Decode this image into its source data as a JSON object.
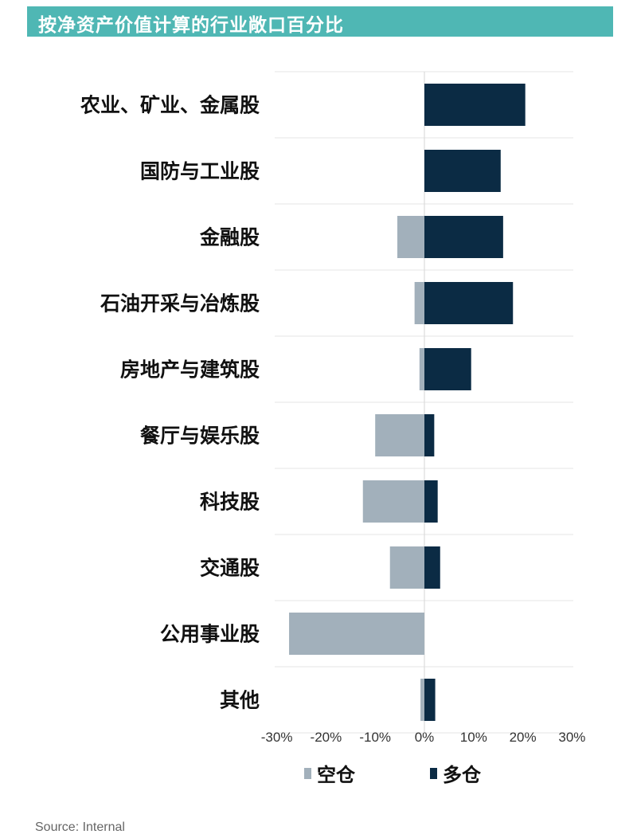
{
  "title": "按净资产价值计算的行业敞口百分比",
  "source": "Source: Internal",
  "colors": {
    "header_bg": "#4FB7B4",
    "short": "#A2B0BB",
    "long": "#0B2B44",
    "grid": "#E4E4E4"
  },
  "chart_data": {
    "type": "bar",
    "orientation": "horizontal",
    "title": "按净资产价值计算的行业敞口百分比",
    "categories": [
      "农业、矿业、金属股",
      "国防与工业股",
      "金融股",
      "石油开采与冶炼股",
      "房地产与建筑股",
      "餐厅与娱乐股",
      "科技股",
      "交通股",
      "公用事业股",
      "其他"
    ],
    "series": [
      {
        "name": "空仓",
        "values": [
          0,
          0,
          -5.5,
          -2,
          -1,
          -10,
          -12.5,
          -7,
          -27.5,
          -0.8
        ]
      },
      {
        "name": "多仓",
        "values": [
          20.5,
          15.5,
          16,
          18,
          9.5,
          2,
          2.7,
          3.2,
          0,
          2.2
        ]
      }
    ],
    "xlim": [
      -30,
      30
    ],
    "xticks": [
      -30,
      -20,
      -10,
      0,
      10,
      20,
      30
    ],
    "xtick_labels": [
      "-30%",
      "-20%",
      "-10%",
      "0%",
      "10%",
      "20%",
      "30%"
    ],
    "grid": true,
    "legend": "bottom"
  }
}
